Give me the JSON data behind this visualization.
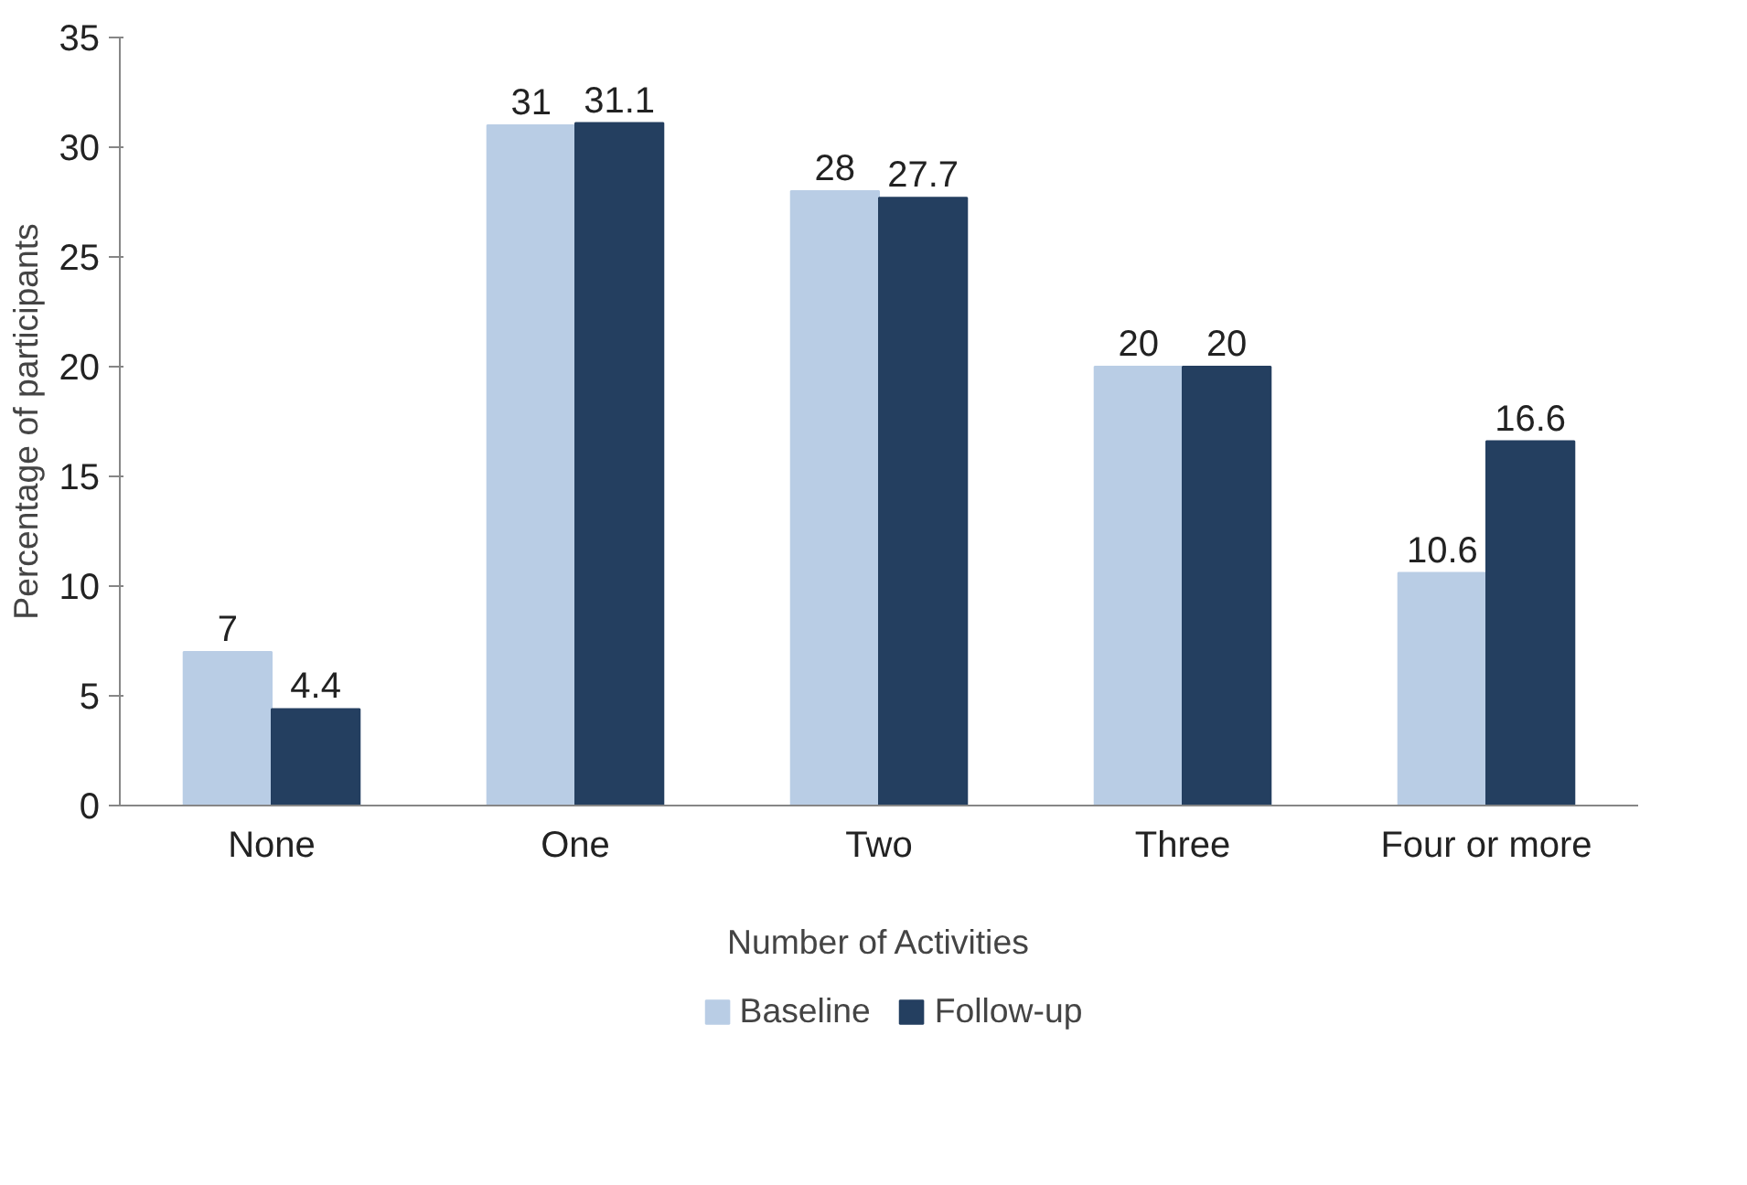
{
  "chart_data": {
    "type": "bar",
    "xlabel": "Number of Activities",
    "ylabel": "Percentage of participants",
    "categories": [
      "None",
      "One",
      "Two",
      "Three",
      "Four or more"
    ],
    "series": [
      {
        "name": "Baseline",
        "color": "#b9cde5",
        "values": [
          7,
          31,
          28,
          20,
          10.6
        ]
      },
      {
        "name": "Follow-up",
        "color": "#243f60",
        "values": [
          4.4,
          31.1,
          27.7,
          20,
          16.6
        ]
      }
    ],
    "ylim": [
      0,
      35
    ],
    "yticks": [
      0,
      5,
      10,
      15,
      20,
      25,
      30,
      35
    ],
    "grid": false,
    "legend": "bottom",
    "data_labels": true
  }
}
